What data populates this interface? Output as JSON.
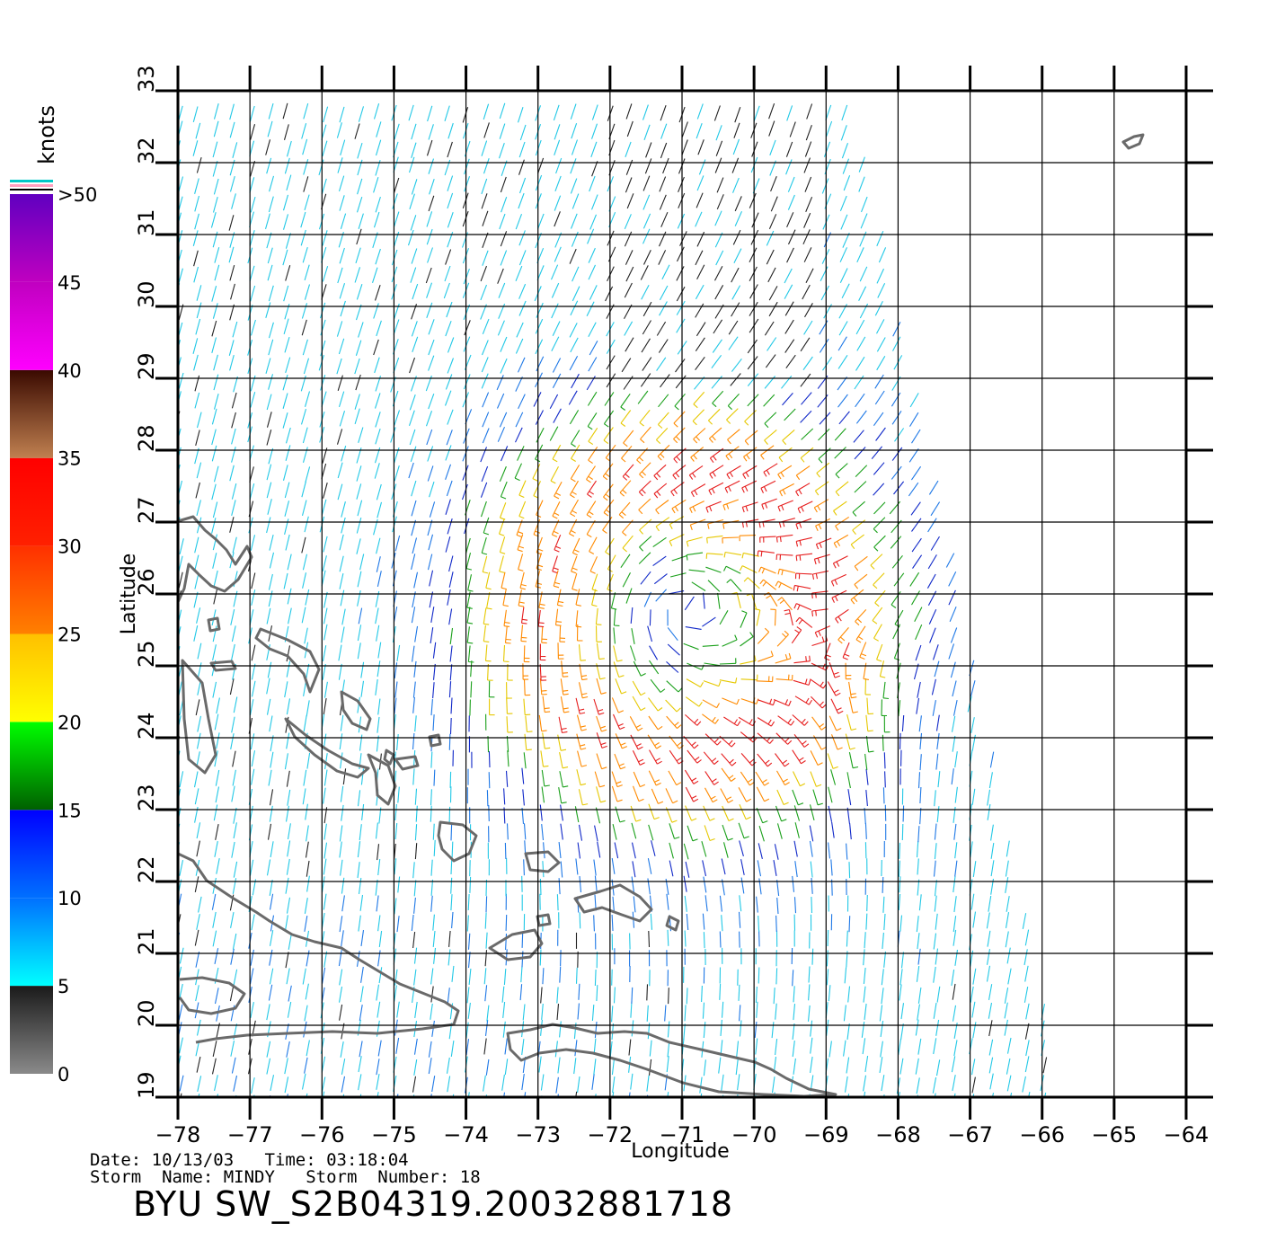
{
  "map": {
    "lon_range": [
      -78,
      -64
    ],
    "lat_range": [
      19,
      33
    ],
    "lon_ticks": [
      "−78",
      "−77",
      "−76",
      "−75",
      "−74",
      "−73",
      "−72",
      "−71",
      "−70",
      "−69",
      "−68",
      "−67",
      "−66",
      "−65",
      "−64"
    ],
    "lat_ticks": [
      "19",
      "20",
      "21",
      "22",
      "23",
      "24",
      "25",
      "26",
      "27",
      "28",
      "29",
      "30",
      "31",
      "32",
      "33"
    ],
    "xlabel": "Longitude",
    "ylabel": "Latitude",
    "grid": true,
    "storm_center": {
      "lon": -71.0,
      "lat": 25.8
    }
  },
  "colorbar": {
    "unit_label": "knots",
    "tick_labels": [
      "0",
      "5",
      "10",
      "15",
      "20",
      "25",
      "30",
      "35",
      "40",
      "45",
      ">50"
    ],
    "bands": [
      {
        "from": 0,
        "to": 5,
        "colors": [
          "#8a8a8a",
          "#1a1a1a"
        ]
      },
      {
        "from": 5,
        "to": 10,
        "colors": [
          "#00ffff",
          "#0070ff"
        ]
      },
      {
        "from": 10,
        "to": 15,
        "colors": [
          "#0070ff",
          "#0000ff"
        ]
      },
      {
        "from": 15,
        "to": 20,
        "colors": [
          "#006000",
          "#00ff00"
        ]
      },
      {
        "from": 20,
        "to": 25,
        "colors": [
          "#ffff00",
          "#ffc000"
        ]
      },
      {
        "from": 25,
        "to": 30,
        "colors": [
          "#ff8000",
          "#ff3000"
        ]
      },
      {
        "from": 30,
        "to": 35,
        "colors": [
          "#ff2000",
          "#ff0000"
        ]
      },
      {
        "from": 35,
        "to": 40,
        "colors": [
          "#c08050",
          "#3a0a00"
        ]
      },
      {
        "from": 40,
        "to": 45,
        "colors": [
          "#ff00ff",
          "#c000c0"
        ]
      },
      {
        "from": 45,
        "to": 50,
        "colors": [
          "#c000c0",
          "#6000c0"
        ]
      }
    ]
  },
  "footer": {
    "line1": "Date: 10/13/03   Time: 03:18:04",
    "line2": "Storm  Name: MINDY   Storm  Number: 18",
    "title": "BYU  SW_S2B04319.20032881718"
  },
  "chart_data": {
    "type": "wind_barbs",
    "unit": "knots",
    "xlabel": "Longitude",
    "ylabel": "Latitude",
    "xlim": [
      -78,
      -64
    ],
    "ylim": [
      19,
      33
    ],
    "speed_range": [
      0,
      50
    ]
  }
}
